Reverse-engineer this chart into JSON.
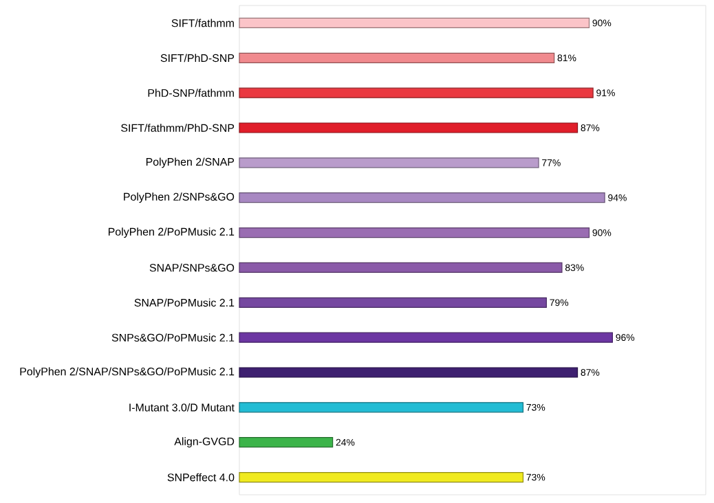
{
  "chart_data": {
    "type": "bar",
    "orientation": "horizontal",
    "xlim": [
      0,
      120
    ],
    "categories": [
      "SIFT/fathmm",
      "SIFT/PhD-SNP",
      "PhD-SNP/fathmm",
      "SIFT/fathmm/PhD-SNP",
      "PolyPhen 2/SNAP",
      "PolyPhen 2/SNPs&GO",
      "PolyPhen 2/PoPMusic 2.1",
      "SNAP/SNPs&GO",
      "SNAP/PoPMusic 2.1",
      "SNPs&GO/PoPMusic 2.1",
      "PolyPhen 2/SNAP/SNPs&GO/PoPMusic 2.1",
      "I-Mutant 3.0/D Mutant",
      "Align-GVGD",
      "SNPeffect 4.0"
    ],
    "values": [
      90,
      81,
      91,
      87,
      77,
      94,
      90,
      83,
      79,
      96,
      87,
      73,
      24,
      73
    ],
    "value_labels": [
      "90%",
      "81%",
      "91%",
      "87%",
      "77%",
      "94%",
      "90%",
      "83%",
      "79%",
      "96%",
      "87%",
      "73%",
      "24%",
      "73%"
    ],
    "colors": [
      "#fbc4c8",
      "#f08a8e",
      "#ea3840",
      "#e01e2a",
      "#b99ccb",
      "#a888c2",
      "#9a6db2",
      "#8a5aa8",
      "#7548a0",
      "#6c36a2",
      "#3e2070",
      "#22bcd4",
      "#3cb44a",
      "#f0ea20"
    ]
  }
}
